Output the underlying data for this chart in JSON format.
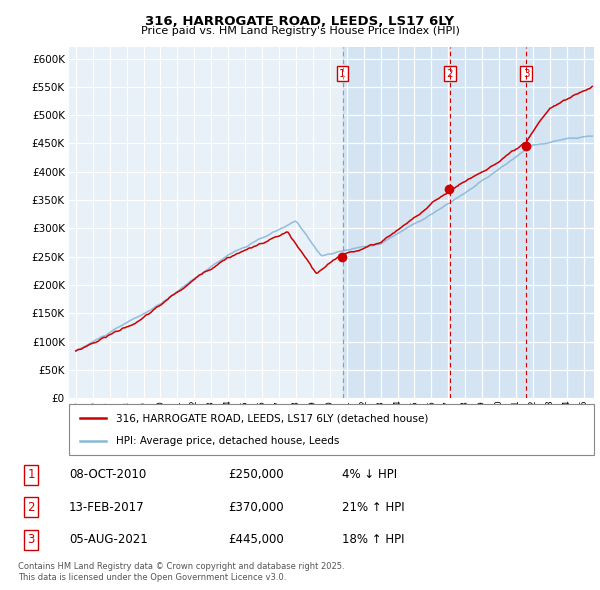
{
  "title1": "316, HARROGATE ROAD, LEEDS, LS17 6LY",
  "title2": "Price paid vs. HM Land Registry's House Price Index (HPI)",
  "legend_red": "316, HARROGATE ROAD, LEEDS, LS17 6LY (detached house)",
  "legend_blue": "HPI: Average price, detached house, Leeds",
  "sale1_date": "08-OCT-2010",
  "sale1_price": 250000,
  "sale1_note": "4% ↓ HPI",
  "sale2_date": "13-FEB-2017",
  "sale2_price": 370000,
  "sale2_note": "21% ↑ HPI",
  "sale3_date": "05-AUG-2021",
  "sale3_price": 445000,
  "sale3_note": "18% ↑ HPI",
  "footer": "Contains HM Land Registry data © Crown copyright and database right 2025.\nThis data is licensed under the Open Government Licence v3.0.",
  "bg_color": "#e8f0f8",
  "grid_color": "#ffffff",
  "red_color": "#cc0000",
  "blue_color": "#88b8d8",
  "ylim_max": 620000,
  "ylim_min": 0
}
